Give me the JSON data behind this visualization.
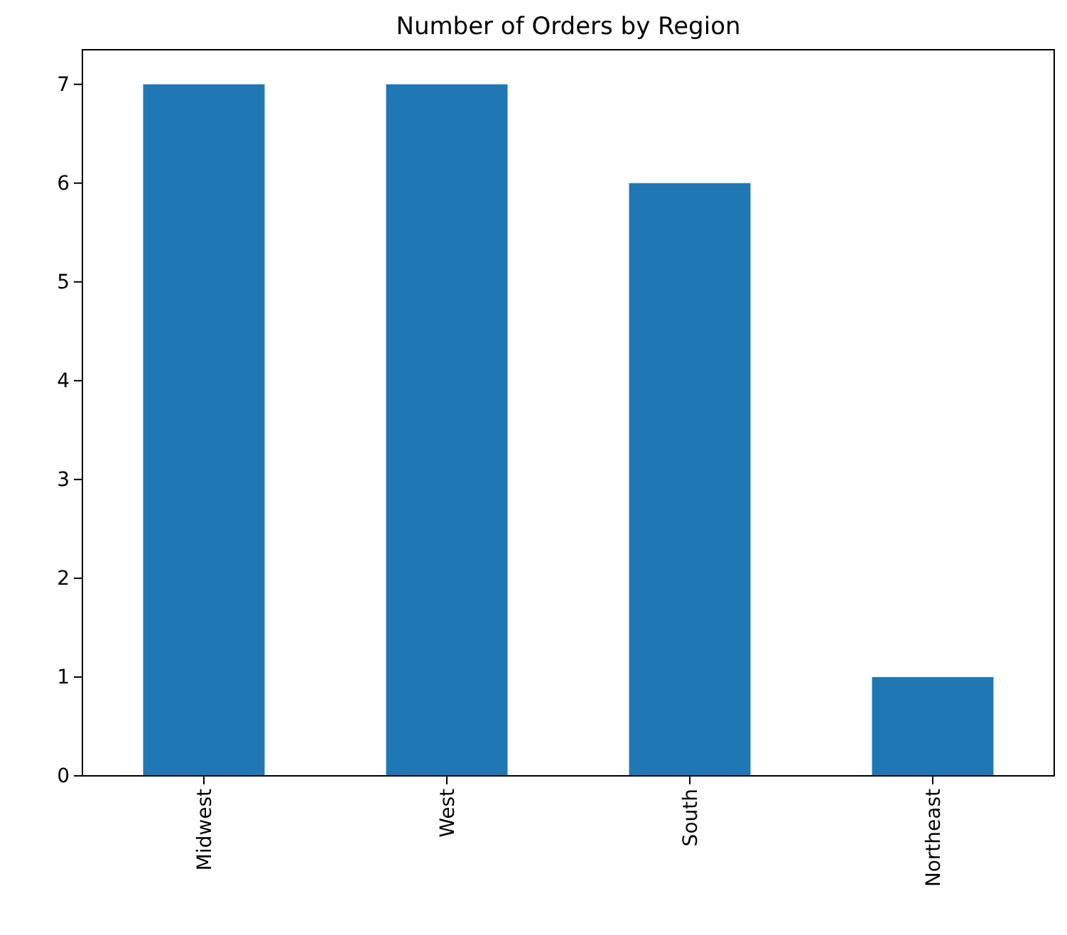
{
  "chart_data": {
    "type": "bar",
    "title": "Number of Orders by Region",
    "categories": [
      "Midwest",
      "West",
      "South",
      "Northeast"
    ],
    "values": [
      7,
      7,
      6,
      1
    ],
    "color": "#1f77b4",
    "ylim": [
      0,
      7.35
    ],
    "yticks": [
      0,
      1,
      2,
      3,
      4,
      5,
      6,
      7
    ]
  }
}
